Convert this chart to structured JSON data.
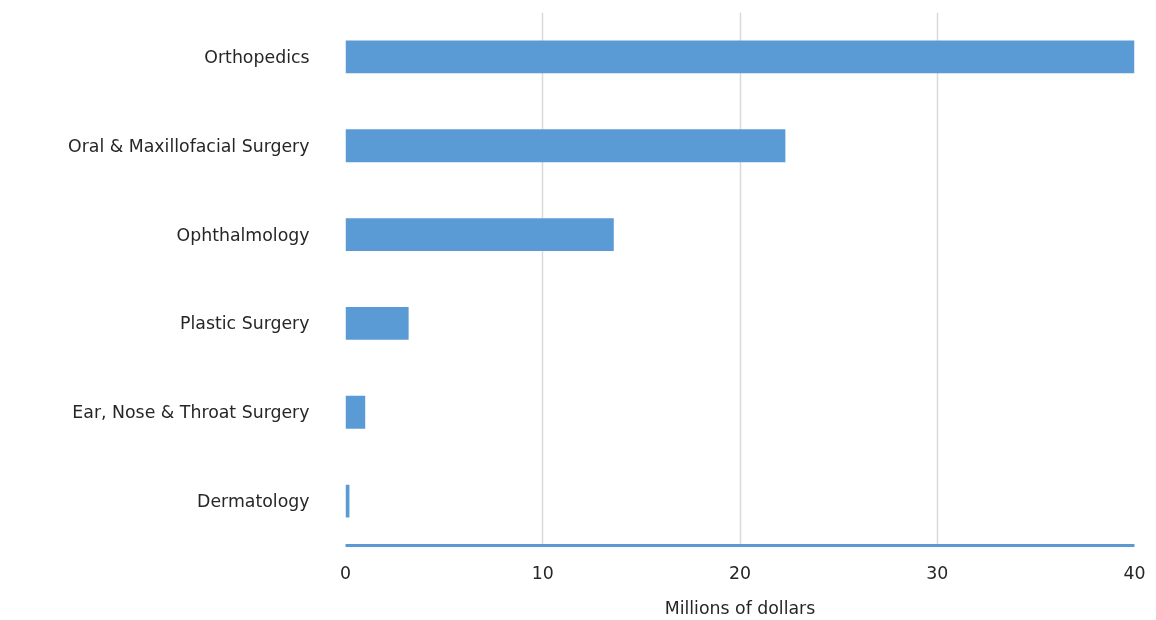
{
  "chart_data": {
    "type": "bar",
    "orientation": "horizontal",
    "xlabel": "Millions of dollars",
    "categories": [
      "Orthopedics",
      "Oral & Maxillofacial Surgery",
      "Ophthalmology",
      "Plastic Surgery",
      "Ear, Nose & Throat Surgery",
      "Dermatology"
    ],
    "series": [
      {
        "color": "#5b9bd5",
        "values": [
          40,
          22.3,
          13.6,
          3.2,
          1.0,
          0.2
        ]
      }
    ],
    "xlim": [
      0,
      40
    ],
    "xticks": [
      0,
      10,
      20,
      30,
      40
    ],
    "grid": "x"
  }
}
